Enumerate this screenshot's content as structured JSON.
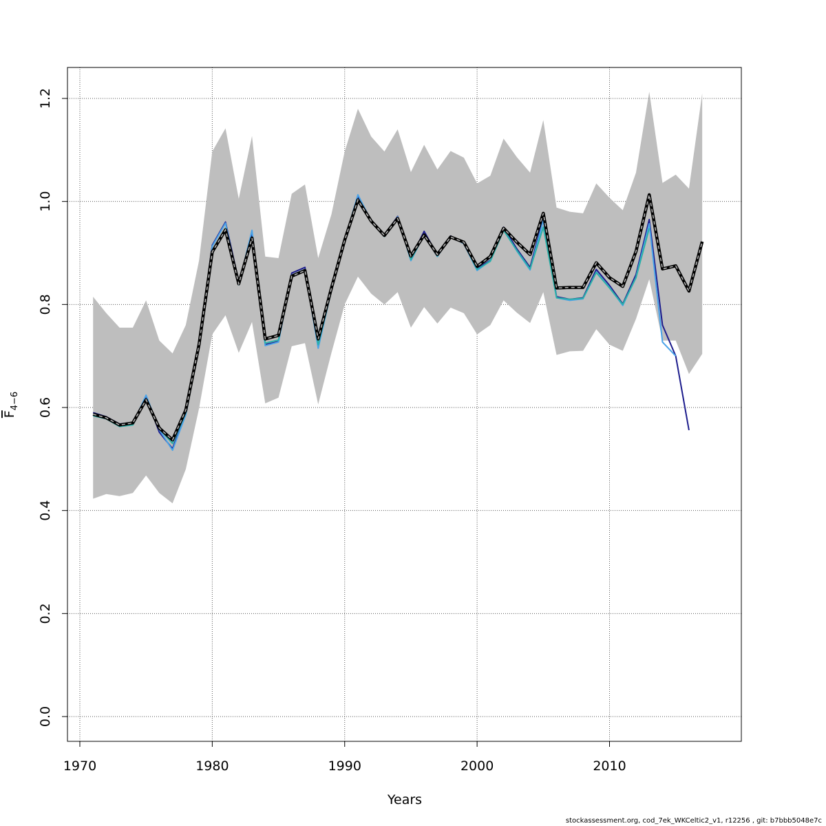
{
  "chart_data": {
    "type": "line",
    "xlabel": "Years",
    "ylabel": {
      "base": "F",
      "sub": "4−6"
    },
    "xlim": [
      1970,
      2018
    ],
    "ylim": [
      0,
      1.2
    ],
    "xticks": [
      1970,
      1980,
      1990,
      2000,
      2010
    ],
    "yticks": [
      0.0,
      0.2,
      0.4,
      0.6,
      0.8,
      1.0,
      1.2
    ],
    "ytick_labels": [
      "0.0",
      "0.2",
      "0.4",
      "0.6",
      "0.8",
      "1.0",
      "1.2"
    ],
    "grid": true,
    "band": {
      "x": [
        1971,
        1972,
        1973,
        1974,
        1975,
        1976,
        1977,
        1978,
        1979,
        1980,
        1981,
        1982,
        1983,
        1984,
        1985,
        1986,
        1987,
        1988,
        1989,
        1990,
        1991,
        1992,
        1993,
        1994,
        1995,
        1996,
        1997,
        1998,
        1999,
        2000,
        2001,
        2002,
        2003,
        2004,
        2005,
        2006,
        2007,
        2008,
        2009,
        2010,
        2011,
        2012,
        2013,
        2014,
        2015,
        2016,
        2017
      ],
      "upper": [
        0.815,
        0.783,
        0.755,
        0.755,
        0.808,
        0.73,
        0.705,
        0.76,
        0.885,
        1.097,
        1.142,
        1.005,
        1.127,
        0.893,
        0.89,
        1.015,
        1.033,
        0.89,
        0.975,
        1.097,
        1.18,
        1.126,
        1.097,
        1.14,
        1.057,
        1.11,
        1.062,
        1.098,
        1.085,
        1.035,
        1.05,
        1.122,
        1.086,
        1.056,
        1.158,
        0.988,
        0.98,
        0.977,
        1.035,
        1.007,
        0.983,
        1.056,
        1.213,
        1.036,
        1.052,
        1.025,
        1.21
      ],
      "lower": [
        0.423,
        0.432,
        0.428,
        0.434,
        0.468,
        0.434,
        0.414,
        0.48,
        0.598,
        0.742,
        0.779,
        0.706,
        0.766,
        0.608,
        0.619,
        0.719,
        0.725,
        0.606,
        0.706,
        0.8,
        0.854,
        0.821,
        0.8,
        0.824,
        0.755,
        0.795,
        0.763,
        0.794,
        0.783,
        0.742,
        0.76,
        0.808,
        0.784,
        0.764,
        0.824,
        0.702,
        0.709,
        0.71,
        0.752,
        0.722,
        0.71,
        0.772,
        0.849,
        0.73,
        0.73,
        0.665,
        0.704
      ]
    },
    "series": [
      {
        "color": "#000000",
        "style": "dashed-double",
        "x": [
          1971,
          1972,
          1973,
          1974,
          1975,
          1976,
          1977,
          1978,
          1979,
          1980,
          1981,
          1982,
          1983,
          1984,
          1985,
          1986,
          1987,
          1988,
          1989,
          1990,
          1991,
          1992,
          1993,
          1994,
          1995,
          1996,
          1997,
          1998,
          1999,
          2000,
          2001,
          2002,
          2003,
          2004,
          2005,
          2006,
          2007,
          2008,
          2009,
          2010,
          2011,
          2012,
          2013,
          2014,
          2015,
          2016,
          2017
        ],
        "values": [
          0.587,
          0.58,
          0.566,
          0.57,
          0.615,
          0.56,
          0.537,
          0.595,
          0.722,
          0.902,
          0.945,
          0.84,
          0.929,
          0.733,
          0.74,
          0.855,
          0.866,
          0.733,
          0.832,
          0.925,
          1.003,
          0.962,
          0.934,
          0.967,
          0.894,
          0.935,
          0.897,
          0.931,
          0.921,
          0.874,
          0.893,
          0.948,
          0.921,
          0.897,
          0.977,
          0.832,
          0.833,
          0.833,
          0.881,
          0.852,
          0.835,
          0.903,
          1.013,
          0.869,
          0.875,
          0.826,
          0.922
        ]
      },
      {
        "color": "#1c1c8c",
        "style": "solid",
        "x": [
          1971,
          1972,
          1973,
          1974,
          1975,
          1976,
          1977,
          1978,
          1979,
          1980,
          1981,
          1982,
          1983,
          1984,
          1985,
          1986,
          1987,
          1988,
          1989,
          1990,
          1991,
          1992,
          1993,
          1994,
          1995,
          1996,
          1997,
          1998,
          1999,
          2000,
          2001,
          2002,
          2003,
          2004,
          2005,
          2006,
          2007,
          2008,
          2009,
          2010,
          2011,
          2012,
          2013,
          2014,
          2015,
          2016
        ],
        "values": [
          0.59,
          0.582,
          0.568,
          0.571,
          0.62,
          0.552,
          0.52,
          0.59,
          0.722,
          0.915,
          0.96,
          0.844,
          0.935,
          0.722,
          0.728,
          0.861,
          0.872,
          0.72,
          0.832,
          0.925,
          1.01,
          0.96,
          0.934,
          0.971,
          0.89,
          0.942,
          0.896,
          0.933,
          0.919,
          0.87,
          0.886,
          0.95,
          0.908,
          0.872,
          0.968,
          0.815,
          0.81,
          0.813,
          0.868,
          0.837,
          0.801,
          0.858,
          0.965,
          0.76,
          0.7,
          0.556
        ]
      },
      {
        "color": "#4aa3e8",
        "style": "solid",
        "x": [
          1971,
          1972,
          1973,
          1974,
          1975,
          1976,
          1977,
          1978,
          1979,
          1980,
          1981,
          1982,
          1983,
          1984,
          1985,
          1986,
          1987,
          1988,
          1989,
          1990,
          1991,
          1992,
          1993,
          1994,
          1995,
          1996,
          1997,
          1998,
          1999,
          2000,
          2001,
          2002,
          2003,
          2004,
          2005,
          2006,
          2007,
          2008,
          2009,
          2010,
          2011,
          2012,
          2013,
          2014,
          2015
        ],
        "values": [
          0.586,
          0.579,
          0.564,
          0.567,
          0.624,
          0.557,
          0.517,
          0.586,
          0.718,
          0.913,
          0.958,
          0.838,
          0.944,
          0.72,
          0.727,
          0.857,
          0.868,
          0.715,
          0.828,
          0.925,
          1.013,
          0.962,
          0.932,
          0.97,
          0.885,
          0.936,
          0.893,
          0.932,
          0.918,
          0.866,
          0.885,
          0.946,
          0.904,
          0.867,
          0.963,
          0.813,
          0.808,
          0.811,
          0.863,
          0.833,
          0.798,
          0.853,
          0.957,
          0.727,
          0.7
        ]
      },
      {
        "color": "#2ab0a8",
        "style": "solid",
        "x": [
          1971,
          1972,
          1973,
          1974,
          1975,
          1976,
          1977,
          1978,
          1979,
          1980,
          1981,
          1982,
          1983,
          1984,
          1985,
          1986,
          1987,
          1988,
          1989,
          1990,
          1991,
          1992,
          1993,
          1994,
          1995,
          1996,
          1997,
          1998,
          1999,
          2000,
          2001,
          2002,
          2003,
          2004,
          2005,
          2006,
          2007,
          2008,
          2009,
          2010,
          2011,
          2012,
          2013
        ],
        "values": [
          0.584,
          0.578,
          0.563,
          0.566,
          0.615,
          0.559,
          0.53,
          0.59,
          0.717,
          0.905,
          0.948,
          0.838,
          0.93,
          0.725,
          0.731,
          0.855,
          0.865,
          0.722,
          0.827,
          0.923,
          1.005,
          0.961,
          0.932,
          0.968,
          0.887,
          0.935,
          0.894,
          0.932,
          0.919,
          0.868,
          0.884,
          0.944,
          0.905,
          0.869,
          0.95,
          0.813,
          0.81,
          0.812,
          0.862,
          0.832,
          0.8,
          0.852,
          0.948
        ]
      }
    ]
  },
  "footer": "stockassessment.org, cod_7ek_WKCeltic2_v1, r12256 , git: b7bbb5048e7c"
}
